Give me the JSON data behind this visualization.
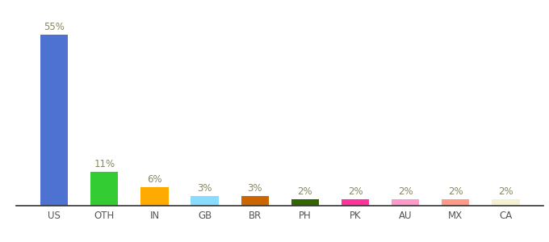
{
  "categories": [
    "US",
    "OTH",
    "IN",
    "GB",
    "BR",
    "PH",
    "PK",
    "AU",
    "MX",
    "CA"
  ],
  "values": [
    55,
    11,
    6,
    3,
    3,
    2,
    2,
    2,
    2,
    2
  ],
  "colors": [
    "#4d72d1",
    "#33cc33",
    "#ffaa00",
    "#88ddff",
    "#cc6600",
    "#336600",
    "#ff3399",
    "#ff99cc",
    "#ff9988",
    "#f5f0d0"
  ],
  "ylim": [
    0,
    60
  ],
  "label_fontsize": 8.5,
  "tick_fontsize": 8.5,
  "bar_width": 0.55
}
